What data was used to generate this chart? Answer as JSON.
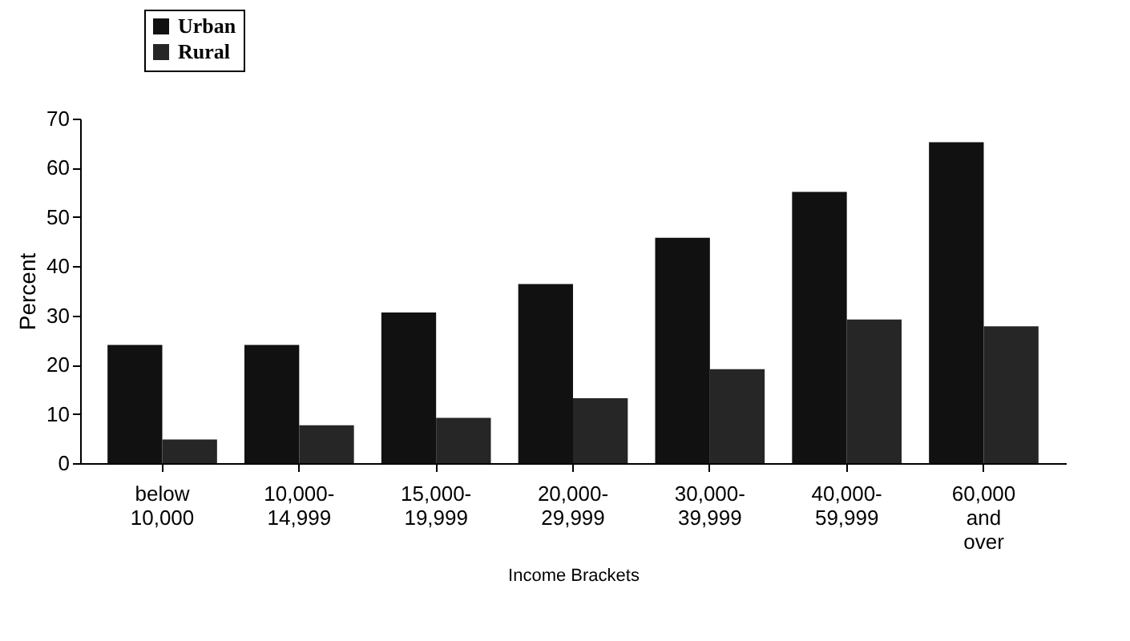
{
  "chart_data": {
    "type": "bar",
    "xlabel": "Income Brackets",
    "ylabel": "Percent",
    "categories": [
      "below\n10,000",
      "10,000-\n14,999",
      "15,000-\n19,999",
      "20,000-\n29,999",
      "30,000-\n39,999",
      "40,000-\n59,999",
      "60,000\nand\nover"
    ],
    "series": [
      {
        "name": "Urban",
        "color": "#111111",
        "values": [
          24,
          24,
          30.6,
          36.4,
          45.8,
          55.1,
          65.2
        ]
      },
      {
        "name": "Rural",
        "color": "#262626",
        "values": [
          4.8,
          7.7,
          9.2,
          13.2,
          19.1,
          29.2,
          27.8
        ]
      }
    ],
    "ylim": [
      0,
      70
    ],
    "yticks": [
      0,
      10,
      20,
      30,
      40,
      50,
      60,
      70
    ],
    "grid": false,
    "legend": "top left"
  }
}
